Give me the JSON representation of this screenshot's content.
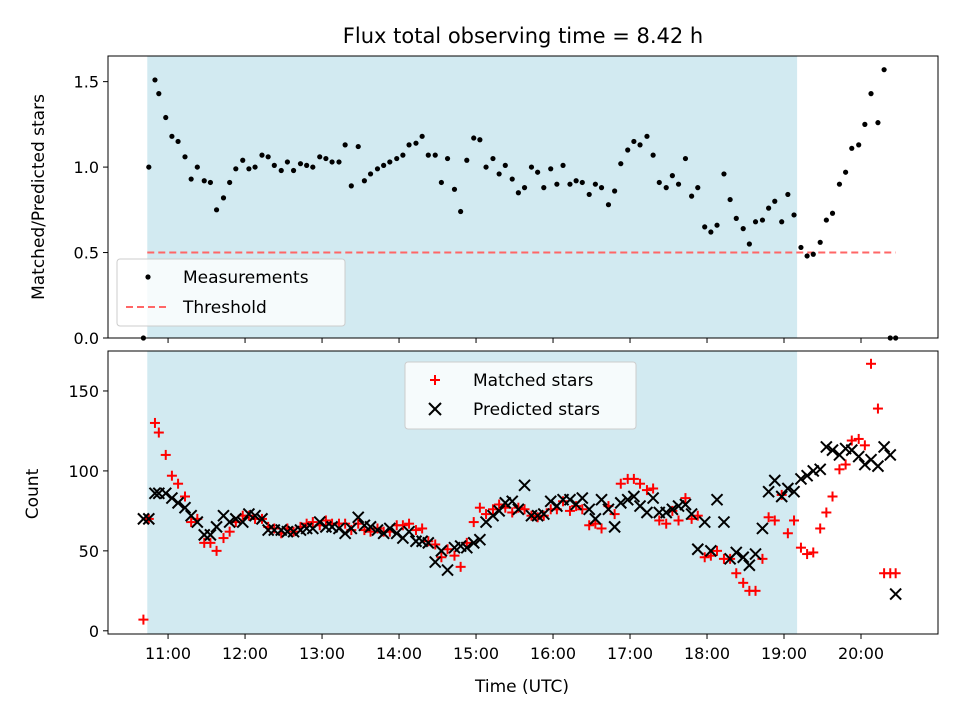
{
  "chart_data": [
    {
      "type": "scatter",
      "title": "Flux total observing time = 8.42 h",
      "xlabel": "",
      "ylabel": "Matched/Predicted stars",
      "xlim": [
        10.22,
        21.0
      ],
      "ylim": [
        0,
        1.65
      ],
      "yticks": [
        "0.0",
        "0.5",
        "1.0",
        "1.5"
      ],
      "ytick_values": [
        0,
        0.5,
        1.0,
        1.5
      ],
      "shaded_interval": {
        "x_start": 10.73,
        "x_end": 19.17,
        "color": "#add8e6"
      },
      "legend": {
        "location": "lower-left",
        "entries": [
          "Measurements",
          "Threshold"
        ]
      },
      "series": [
        {
          "name": "Measurements",
          "marker": "dot",
          "color": "#000000",
          "x": [
            10.68,
            10.75,
            10.83,
            10.88,
            10.97,
            11.05,
            11.13,
            11.22,
            11.3,
            11.38,
            11.47,
            11.55,
            11.63,
            11.72,
            11.8,
            11.88,
            11.97,
            12.05,
            12.13,
            12.22,
            12.3,
            12.38,
            12.47,
            12.55,
            12.63,
            12.72,
            12.8,
            12.88,
            12.97,
            13.05,
            13.13,
            13.22,
            13.3,
            13.38,
            13.47,
            13.55,
            13.63,
            13.72,
            13.8,
            13.88,
            13.97,
            14.05,
            14.13,
            14.22,
            14.3,
            14.38,
            14.47,
            14.55,
            14.63,
            14.72,
            14.8,
            14.88,
            14.97,
            15.05,
            15.13,
            15.22,
            15.3,
            15.38,
            15.47,
            15.55,
            15.63,
            15.72,
            15.8,
            15.88,
            15.97,
            16.05,
            16.13,
            16.22,
            16.3,
            16.38,
            16.47,
            16.55,
            16.63,
            16.72,
            16.8,
            16.88,
            16.97,
            17.05,
            17.13,
            17.22,
            17.3,
            17.38,
            17.47,
            17.55,
            17.63,
            17.72,
            17.8,
            17.88,
            17.97,
            18.05,
            18.13,
            18.22,
            18.3,
            18.38,
            18.47,
            18.55,
            18.63,
            18.72,
            18.8,
            18.88,
            18.97,
            19.05,
            19.13,
            19.22,
            19.3,
            19.38,
            19.47,
            19.55,
            19.63,
            19.72,
            19.8,
            19.88,
            19.97,
            20.05,
            20.13,
            20.22,
            20.3,
            20.38,
            20.45
          ],
          "y": [
            0.0,
            1.0,
            1.51,
            1.43,
            1.29,
            1.18,
            1.15,
            1.06,
            0.93,
            1.0,
            0.92,
            0.91,
            0.75,
            0.82,
            0.91,
            0.99,
            1.04,
            0.99,
            1.0,
            1.07,
            1.06,
            1.01,
            0.98,
            1.03,
            0.98,
            1.02,
            1.01,
            1.0,
            1.06,
            1.05,
            1.03,
            1.03,
            1.13,
            0.89,
            1.12,
            0.92,
            0.96,
            0.99,
            1.01,
            1.03,
            1.05,
            1.07,
            1.13,
            1.14,
            1.18,
            1.07,
            1.07,
            0.91,
            1.05,
            0.87,
            0.74,
            1.04,
            1.17,
            1.16,
            1.0,
            1.05,
            0.96,
            1.01,
            0.93,
            0.85,
            0.88,
            1.0,
            0.97,
            0.88,
            0.99,
            0.9,
            1.01,
            0.9,
            0.92,
            0.91,
            0.84,
            0.9,
            0.88,
            0.78,
            0.86,
            1.02,
            1.1,
            1.15,
            1.13,
            1.18,
            1.07,
            0.91,
            0.88,
            0.95,
            0.9,
            1.05,
            0.83,
            0.88,
            0.65,
            0.62,
            0.66,
            0.96,
            0.81,
            0.7,
            0.64,
            0.55,
            0.68,
            0.69,
            0.76,
            0.8,
            0.68,
            0.84,
            0.72,
            0.53,
            0.48,
            0.49,
            0.56,
            0.69,
            0.73,
            0.9,
            0.97,
            1.11,
            1.13,
            1.25,
            1.43,
            1.26,
            1.57,
            0.0,
            0.0
          ]
        },
        {
          "name": "Threshold",
          "marker": "dashed-line",
          "color": "#ff6666",
          "x": [
            10.73,
            20.45
          ],
          "y": [
            0.5,
            0.5
          ]
        }
      ]
    },
    {
      "type": "scatter",
      "title": "",
      "xlabel": "Time (UTC)",
      "ylabel": "Count",
      "xlim": [
        10.22,
        21.0
      ],
      "ylim": [
        -2,
        175
      ],
      "yticks": [
        "0",
        "50",
        "100",
        "150"
      ],
      "ytick_values": [
        0,
        50,
        100,
        150
      ],
      "xticks": [
        "11:00",
        "12:00",
        "13:00",
        "14:00",
        "15:00",
        "16:00",
        "17:00",
        "18:00",
        "19:00",
        "20:00"
      ],
      "xtick_values": [
        11,
        12,
        13,
        14,
        15,
        16,
        17,
        18,
        19,
        20
      ],
      "shaded_interval": {
        "x_start": 10.73,
        "x_end": 19.17,
        "color": "#add8e6"
      },
      "legend": {
        "location": "upper-center",
        "entries": [
          "Matched stars",
          "Predicted stars"
        ]
      },
      "series": [
        {
          "name": "Matched stars",
          "marker": "plus",
          "color": "#ff0000",
          "x": [
            10.68,
            10.75,
            10.83,
            10.88,
            10.97,
            11.05,
            11.13,
            11.22,
            11.3,
            11.38,
            11.47,
            11.55,
            11.63,
            11.72,
            11.8,
            11.88,
            11.97,
            12.05,
            12.13,
            12.22,
            12.3,
            12.38,
            12.47,
            12.55,
            12.63,
            12.72,
            12.8,
            12.88,
            12.97,
            13.05,
            13.13,
            13.22,
            13.3,
            13.38,
            13.47,
            13.55,
            13.63,
            13.72,
            13.8,
            13.88,
            13.97,
            14.05,
            14.13,
            14.22,
            14.3,
            14.38,
            14.47,
            14.55,
            14.63,
            14.72,
            14.8,
            14.88,
            14.97,
            15.05,
            15.13,
            15.22,
            15.3,
            15.38,
            15.47,
            15.55,
            15.63,
            15.72,
            15.8,
            15.88,
            15.97,
            16.05,
            16.13,
            16.22,
            16.3,
            16.38,
            16.47,
            16.55,
            16.63,
            16.72,
            16.8,
            16.88,
            16.97,
            17.05,
            17.13,
            17.22,
            17.3,
            17.38,
            17.47,
            17.55,
            17.63,
            17.72,
            17.8,
            17.88,
            17.97,
            18.05,
            18.13,
            18.22,
            18.3,
            18.38,
            18.47,
            18.55,
            18.63,
            18.72,
            18.8,
            18.88,
            18.97,
            19.05,
            19.13,
            19.22,
            19.3,
            19.38,
            19.47,
            19.55,
            19.63,
            19.72,
            19.8,
            19.88,
            19.97,
            20.05,
            20.13,
            20.22,
            20.3,
            20.38,
            20.45
          ],
          "y": [
            7,
            70,
            130,
            124,
            110,
            97,
            92,
            84,
            68,
            70,
            55,
            55,
            50,
            58,
            62,
            68,
            72,
            72,
            70,
            70,
            65,
            64,
            61,
            64,
            62,
            65,
            67,
            68,
            66,
            69,
            67,
            67,
            67,
            63,
            67,
            63,
            62,
            64,
            62,
            62,
            66,
            66,
            67,
            63,
            64,
            56,
            54,
            46,
            51,
            47,
            40,
            55,
            68,
            77,
            73,
            76,
            79,
            77,
            74,
            77,
            76,
            72,
            71,
            72,
            76,
            76,
            81,
            75,
            78,
            76,
            66,
            67,
            64,
            78,
            73,
            92,
            95,
            95,
            92,
            88,
            89,
            69,
            67,
            75,
            69,
            83,
            70,
            72,
            46,
            47,
            50,
            45,
            45,
            36,
            30,
            25,
            25,
            45,
            71,
            69,
            85,
            61,
            69,
            52,
            48,
            49,
            64,
            74,
            84,
            101,
            104,
            119,
            120,
            116,
            167,
            139,
            36,
            36,
            36
          ]
        },
        {
          "name": "Predicted stars",
          "marker": "x",
          "color": "#000000",
          "x": [
            10.68,
            10.75,
            10.83,
            10.88,
            10.97,
            11.05,
            11.13,
            11.22,
            11.3,
            11.38,
            11.47,
            11.55,
            11.63,
            11.72,
            11.8,
            11.88,
            11.97,
            12.05,
            12.13,
            12.22,
            12.3,
            12.38,
            12.47,
            12.55,
            12.63,
            12.72,
            12.8,
            12.88,
            12.97,
            13.05,
            13.13,
            13.22,
            13.3,
            13.38,
            13.47,
            13.55,
            13.63,
            13.72,
            13.8,
            13.88,
            13.97,
            14.05,
            14.13,
            14.22,
            14.3,
            14.38,
            14.47,
            14.55,
            14.63,
            14.72,
            14.8,
            14.88,
            14.97,
            15.05,
            15.13,
            15.22,
            15.3,
            15.38,
            15.47,
            15.55,
            15.63,
            15.72,
            15.8,
            15.88,
            15.97,
            16.05,
            16.13,
            16.22,
            16.3,
            16.38,
            16.47,
            16.55,
            16.63,
            16.72,
            16.8,
            16.88,
            16.97,
            17.05,
            17.13,
            17.22,
            17.3,
            17.38,
            17.47,
            17.55,
            17.63,
            17.72,
            17.8,
            17.88,
            17.97,
            18.05,
            18.13,
            18.22,
            18.3,
            18.38,
            18.47,
            18.55,
            18.63,
            18.72,
            18.8,
            18.88,
            18.97,
            19.05,
            19.13,
            19.22,
            19.3,
            19.38,
            19.47,
            19.55,
            19.63,
            19.72,
            19.8,
            19.88,
            19.97,
            20.05,
            20.13,
            20.22,
            20.3,
            20.38,
            20.45
          ],
          "y": [
            70,
            70,
            86,
            86,
            86,
            83,
            80,
            77,
            72,
            68,
            60,
            60,
            65,
            72,
            68,
            70,
            68,
            73,
            72,
            70,
            63,
            63,
            63,
            62,
            62,
            63,
            64,
            64,
            68,
            65,
            65,
            64,
            61,
            64,
            71,
            66,
            65,
            63,
            61,
            64,
            61,
            58,
            62,
            56,
            56,
            55,
            43,
            50,
            38,
            52,
            53,
            52,
            55,
            57,
            68,
            72,
            75,
            80,
            81,
            76,
            91,
            72,
            72,
            73,
            81,
            78,
            82,
            82,
            79,
            83,
            76,
            70,
            82,
            76,
            65,
            80,
            82,
            84,
            78,
            74,
            83,
            74,
            74,
            76,
            78,
            79,
            73,
            51,
            68,
            50,
            82,
            68,
            45,
            49,
            46,
            41,
            48,
            64,
            87,
            94,
            84,
            89,
            87,
            95,
            97,
            100,
            101,
            115,
            113,
            110,
            114,
            113,
            109,
            104,
            107,
            103,
            115,
            110,
            23
          ]
        }
      ]
    }
  ]
}
